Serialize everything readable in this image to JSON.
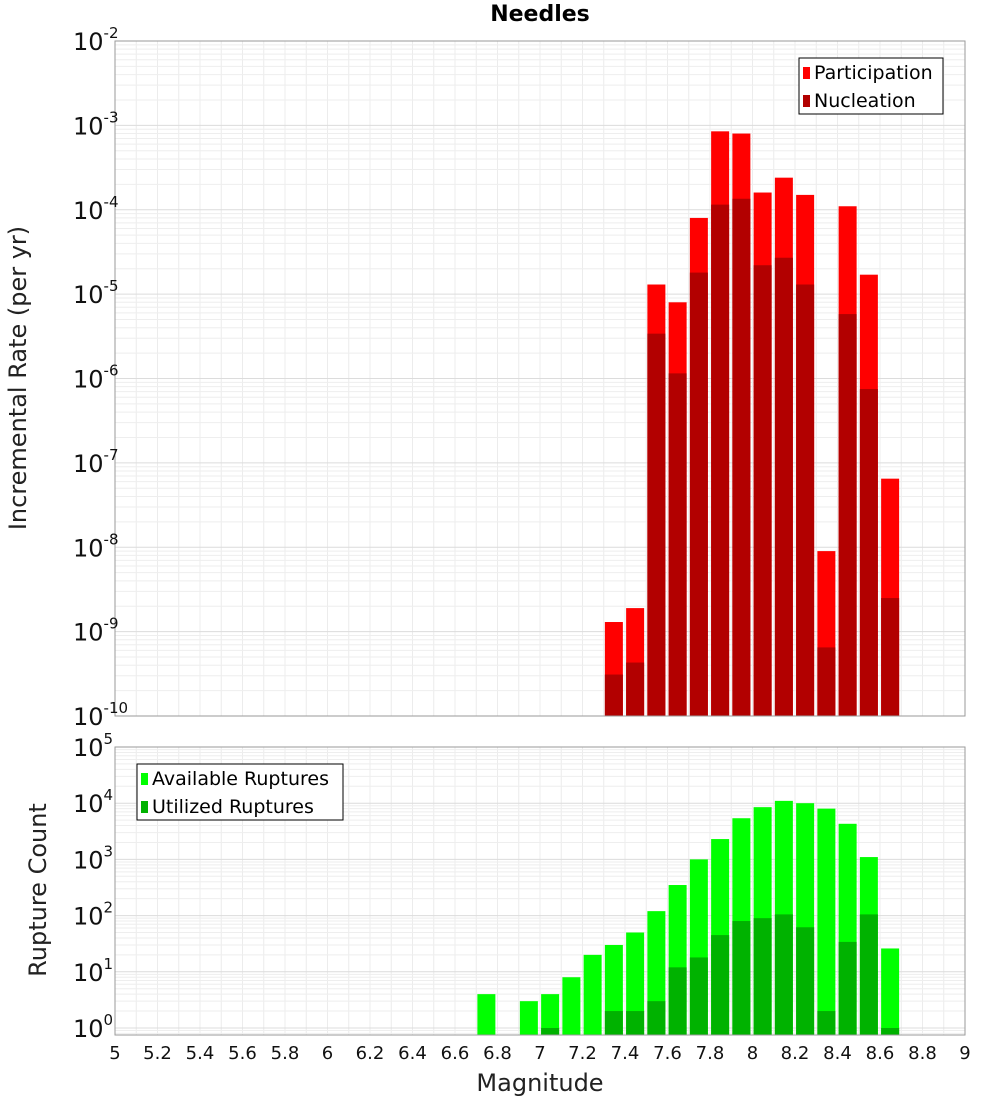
{
  "title": "Needles",
  "chart_data": [
    {
      "type": "bar",
      "title": "Needles",
      "ylabel": "Incremental Rate (per yr)",
      "xlabel": "",
      "yscale": "log",
      "ylim": [
        1e-10,
        0.01
      ],
      "xlim": [
        5,
        9
      ],
      "yticks": [
        {
          "base": "10",
          "exp": "-10"
        },
        {
          "base": "10",
          "exp": "-9"
        },
        {
          "base": "10",
          "exp": "-8"
        },
        {
          "base": "10",
          "exp": "-7"
        },
        {
          "base": "10",
          "exp": "-6"
        },
        {
          "base": "10",
          "exp": "-5"
        },
        {
          "base": "10",
          "exp": "-4"
        },
        {
          "base": "10",
          "exp": "-3"
        },
        {
          "base": "10",
          "exp": "-2"
        }
      ],
      "legend_position": "top-right",
      "grid": true,
      "series": [
        {
          "name": "Participation",
          "color": "#ff0000",
          "x": [
            7.35,
            7.45,
            7.55,
            7.65,
            7.75,
            7.85,
            7.95,
            8.05,
            8.15,
            8.25,
            8.35,
            8.45,
            8.55,
            8.65
          ],
          "values": [
            1.3e-09,
            1.9e-09,
            1.3e-05,
            8e-06,
            8e-05,
            0.00085,
            0.0008,
            0.00016,
            0.00024,
            0.00015,
            9e-09,
            0.00011,
            1.7e-05,
            6.5e-08
          ]
        },
        {
          "name": "Nucleation",
          "color": "#b20000",
          "x": [
            7.35,
            7.45,
            7.55,
            7.65,
            7.75,
            7.85,
            7.95,
            8.05,
            8.15,
            8.25,
            8.35,
            8.45,
            8.55,
            8.65
          ],
          "values": [
            3.1e-10,
            4.3e-10,
            3.4e-06,
            1.15e-06,
            1.8e-05,
            0.000115,
            0.000135,
            2.2e-05,
            2.7e-05,
            1.3e-05,
            6.5e-10,
            5.8e-06,
            7.5e-07,
            2.5e-09
          ]
        }
      ]
    },
    {
      "type": "bar",
      "ylabel": "Rupture Count",
      "xlabel": "Magnitude",
      "yscale": "log",
      "ylim": [
        0.75,
        100000
      ],
      "xlim": [
        5,
        9
      ],
      "yticks": [
        {
          "base": "10",
          "exp": "0"
        },
        {
          "base": "10",
          "exp": "1"
        },
        {
          "base": "10",
          "exp": "2"
        },
        {
          "base": "10",
          "exp": "3"
        },
        {
          "base": "10",
          "exp": "4"
        },
        {
          "base": "10",
          "exp": "5"
        }
      ],
      "xticks": [
        "5",
        "5.2",
        "5.4",
        "5.6",
        "5.8",
        "6",
        "6.2",
        "6.4",
        "6.6",
        "6.8",
        "7",
        "7.2",
        "7.4",
        "7.6",
        "7.8",
        "8",
        "8.2",
        "8.4",
        "8.6",
        "8.8",
        "9"
      ],
      "legend_position": "top-left",
      "grid": true,
      "series": [
        {
          "name": "Available Ruptures",
          "color": "#00ff00",
          "x": [
            6.75,
            6.95,
            7.05,
            7.15,
            7.25,
            7.35,
            7.45,
            7.55,
            7.65,
            7.75,
            7.85,
            7.95,
            8.05,
            8.15,
            8.25,
            8.35,
            8.45,
            8.55,
            8.65
          ],
          "values": [
            4,
            3,
            4,
            8,
            20,
            30,
            50,
            120,
            350,
            1000,
            2300,
            5400,
            8500,
            11000,
            10000,
            8000,
            4300,
            1100,
            26
          ]
        },
        {
          "name": "Utilized Ruptures",
          "color": "#00b200",
          "x": [
            7.05,
            7.35,
            7.45,
            7.55,
            7.65,
            7.75,
            7.85,
            7.95,
            8.05,
            8.15,
            8.25,
            8.35,
            8.45,
            8.55,
            8.65
          ],
          "values": [
            1,
            2,
            2,
            3,
            12,
            18,
            45,
            80,
            90,
            105,
            62,
            2,
            34,
            105,
            1
          ]
        }
      ]
    }
  ]
}
